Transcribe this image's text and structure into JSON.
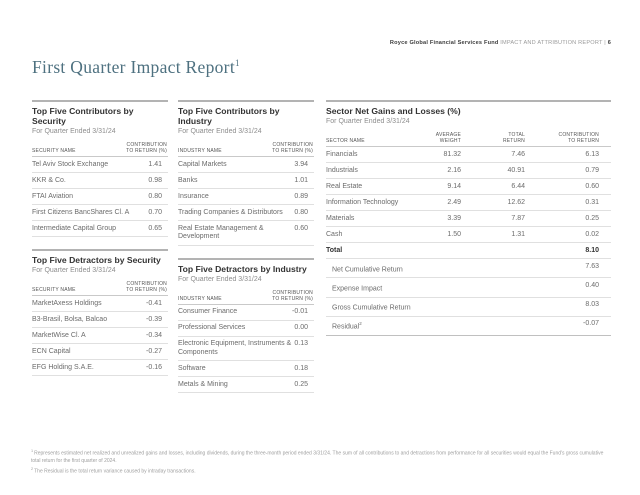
{
  "colors": {
    "title_accent": "#4e7180",
    "rule_gray": "#b3b3b3",
    "text_gray": "#6b6b6b"
  },
  "header": {
    "fund_name": "Royce Global Financial Services Fund",
    "report_label": "IMPACT AND ATTRIBUTION REPORT",
    "separator": "|",
    "page_number": "6"
  },
  "title": {
    "text": "First Quarter Impact Report",
    "superscript": "1"
  },
  "tables": {
    "contributors_security": {
      "title": "Top Five Contributors by Security",
      "subtitle": "For Quarter Ended 3/31/24",
      "col1_header": "SECURITY NAME",
      "col2_header": "CONTRIBUTION\nTO RETURN (%)",
      "rows": [
        {
          "name": "Tel Aviv Stock Exchange",
          "value": "1.41"
        },
        {
          "name": "KKR & Co.",
          "value": "0.98"
        },
        {
          "name": "FTAI Aviation",
          "value": "0.80"
        },
        {
          "name": "First Citizens BancShares Cl. A",
          "value": "0.70"
        },
        {
          "name": "Intermediate Capital Group",
          "value": "0.65"
        }
      ]
    },
    "detractors_security": {
      "title": "Top Five Detractors by Security",
      "subtitle": "For Quarter Ended 3/31/24",
      "col1_header": "SECURITY NAME",
      "col2_header": "CONTRIBUTION\nTO RETURN (%)",
      "rows": [
        {
          "name": "MarketAxess Holdings",
          "value": "-0.41"
        },
        {
          "name": "B3-Brasil, Bolsa, Balcao",
          "value": "-0.39"
        },
        {
          "name": "MarketWise Cl. A",
          "value": "-0.34"
        },
        {
          "name": "ECN Capital",
          "value": "-0.27"
        },
        {
          "name": "EFG Holding S.A.E.",
          "value": "-0.16"
        }
      ]
    },
    "contributors_industry": {
      "title": "Top Five Contributors by Industry",
      "subtitle": "For Quarter Ended 3/31/24",
      "col1_header": "INDUSTRY NAME",
      "col2_header": "CONTRIBUTION\nTO RETURN (%)",
      "rows": [
        {
          "name": "Capital Markets",
          "value": "3.94"
        },
        {
          "name": "Banks",
          "value": "1.01"
        },
        {
          "name": "Insurance",
          "value": "0.89"
        },
        {
          "name": "Trading Companies & Distributors",
          "value": "0.80"
        },
        {
          "name": "Real Estate Management & Development",
          "value": "0.60"
        }
      ]
    },
    "detractors_industry": {
      "title": "Top Five Detractors by Industry",
      "subtitle": "For Quarter Ended 3/31/24",
      "col1_header": "INDUSTRY NAME",
      "col2_header": "CONTRIBUTION\nTO RETURN (%)",
      "rows": [
        {
          "name": "Consumer Finance",
          "value": "-0.01"
        },
        {
          "name": "Professional Services",
          "value": "0.00"
        },
        {
          "name": "Electronic Equipment, Instruments & Components",
          "value": "0.13"
        },
        {
          "name": "Software",
          "value": "0.18"
        },
        {
          "name": "Metals & Mining",
          "value": "0.25"
        }
      ]
    },
    "sector": {
      "title": "Sector Net Gains and Losses (%)",
      "subtitle": "For Quarter Ended 3/31/24",
      "headers": {
        "name": "SECTOR NAME",
        "weight": "AVERAGE\nWEIGHT",
        "return": "TOTAL\nRETURN",
        "contribution": "CONTRIBUTION\nTO RETURN"
      },
      "rows": [
        {
          "name": "Financials",
          "weight": "81.32",
          "return": "7.46",
          "contribution": "6.13"
        },
        {
          "name": "Industrials",
          "weight": "2.16",
          "return": "40.91",
          "contribution": "0.79"
        },
        {
          "name": "Real Estate",
          "weight": "9.14",
          "return": "6.44",
          "contribution": "0.60"
        },
        {
          "name": "Information Technology",
          "weight": "2.49",
          "return": "12.62",
          "contribution": "0.31"
        },
        {
          "name": "Materials",
          "weight": "3.39",
          "return": "7.87",
          "contribution": "0.25"
        },
        {
          "name": "Cash",
          "weight": "1.50",
          "return": "1.31",
          "contribution": "0.02"
        }
      ],
      "total_row": {
        "name": "Total",
        "contribution": "8.10"
      },
      "summary_rows": [
        {
          "name": "Net Cumulative Return",
          "sup": "",
          "value": "7.63"
        },
        {
          "name": "Expense Impact",
          "sup": "",
          "value": "0.40"
        },
        {
          "name": "Gross Cumulative Return",
          "sup": "",
          "value": "8.03"
        },
        {
          "name": "Residual",
          "sup": "2",
          "value": "-0.07"
        }
      ]
    }
  },
  "footnotes": [
    {
      "marker": "1",
      "text": "Represents estimated net realized and unrealized gains and losses, including dividends, during the three-month period ended 3/31/24. The sum of all contributions to and detractions from performance for all securities would equal the Fund's gross cumulative total return for the first quarter of 2024."
    },
    {
      "marker": "2",
      "text": "The Residual is the total return variance caused by intraday transactions."
    }
  ]
}
